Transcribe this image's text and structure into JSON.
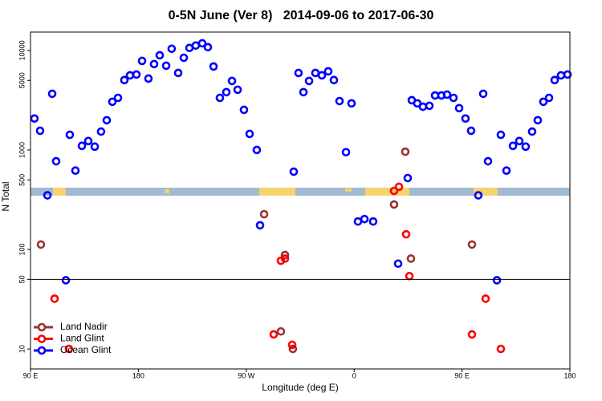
{
  "chart_data": {
    "type": "scatter",
    "title": "0-5N June (Ver 8)   2014-09-06 to 2017-06-30",
    "xlabel": "Longitude (deg E)",
    "ylabel": "N Total",
    "xlim": [
      90,
      540
    ],
    "xticks": [
      {
        "value": 90,
        "label": "90 E"
      },
      {
        "value": 180,
        "label": "180"
      },
      {
        "value": 270,
        "label": "90 W"
      },
      {
        "value": 360,
        "label": "0"
      },
      {
        "value": 450,
        "label": "90 E"
      },
      {
        "value": 540,
        "label": "180"
      }
    ],
    "ylim": [
      6.3,
      15300
    ],
    "ylog": true,
    "yticks": [
      10,
      50,
      100,
      500,
      1000,
      5000,
      10000
    ],
    "reference_line": 50,
    "legend": "lower left",
    "series": [
      {
        "name": "Land Nadir",
        "color": "#993333",
        "x": [
          98.7,
          284.9,
          302.3,
          298.9,
          308.9,
          393.3,
          402.7,
          407.4,
          458.3
        ],
        "values": [
          112,
          226,
          88,
          15,
          10,
          283,
          960,
          81,
          112
        ]
      },
      {
        "name": "Land Glint",
        "color": "#ff0000",
        "x": [
          110.1,
          122.1,
          292.9,
          298.9,
          302.3,
          308.3,
          393.3,
          397.4,
          403.4,
          406.1,
          458.3,
          469.7,
          482.4
        ],
        "values": [
          32,
          10,
          14,
          77,
          81,
          11,
          388,
          426,
          142,
          54,
          14,
          32,
          10
        ]
      },
      {
        "name": "Ocean Glint",
        "color": "#0000ff",
        "x": [
          93.3,
          98.0,
          104.1,
          108.1,
          111.4,
          119.5,
          122.8,
          127.5,
          132.9,
          138.2,
          143.6,
          148.9,
          153.6,
          158.3,
          163.0,
          168.3,
          173.0,
          178.4,
          183.1,
          188.4,
          193.1,
          197.8,
          203.2,
          207.8,
          213.2,
          217.9,
          222.6,
          227.9,
          233.3,
          238.0,
          242.7,
          248.0,
          253.4,
          258.1,
          262.8,
          268.1,
          272.8,
          278.8,
          281.5,
          309.6,
          313.6,
          317.7,
          322.4,
          327.7,
          333.1,
          338.4,
          343.1,
          347.8,
          353.2,
          357.8,
          363.2,
          368.6,
          375.9,
          396.7,
          404.7,
          408.1,
          412.7,
          417.4,
          422.8,
          427.5,
          432.8,
          437.5,
          442.9,
          447.6,
          452.9,
          457.6,
          463.6,
          467.7,
          471.7,
          479.1,
          482.4,
          487.1,
          492.5,
          497.8,
          503.1,
          508.5,
          513.2,
          517.9,
          522.6,
          527.3,
          532.6,
          538.0
        ],
        "values": [
          2070,
          1560,
          350,
          3670,
          770,
          49,
          1420,
          620,
          1100,
          1230,
          1080,
          1530,
          1990,
          3050,
          3340,
          5040,
          5620,
          5730,
          7850,
          5220,
          7300,
          8950,
          7030,
          10400,
          5940,
          8450,
          10600,
          11200,
          11800,
          10800,
          6900,
          3340,
          3810,
          4940,
          4030,
          2530,
          1450,
          1000,
          175,
          605,
          5940,
          3810,
          4940,
          5940,
          5620,
          6170,
          5040,
          3100,
          950,
          2940,
          191,
          202,
          191,
          72,
          522,
          3160,
          2940,
          2720,
          2780,
          3530,
          3530,
          3600,
          3340,
          2630,
          2070,
          1560,
          350,
          3670,
          770,
          49,
          1420,
          620,
          1100,
          1230,
          1080,
          1530,
          1990,
          3050,
          3340,
          5040,
          5620,
          5730
        ]
      }
    ]
  }
}
